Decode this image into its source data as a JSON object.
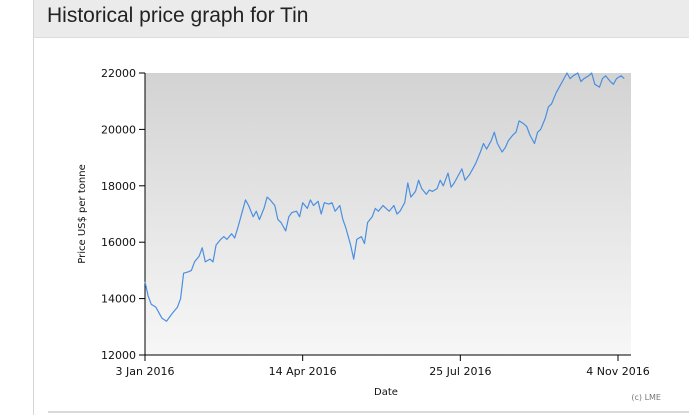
{
  "page": {
    "title": "Historical price graph for Tin"
  },
  "chart_data": {
    "type": "line",
    "title": "",
    "xlabel": "Date",
    "ylabel": "Price US$ per tonne",
    "credit": "(c) LME",
    "ylim": [
      12000,
      22000
    ],
    "xlim": [
      "2016-01-03",
      "2016-11-08"
    ],
    "yticks": [
      12000,
      14000,
      16000,
      18000,
      20000,
      22000
    ],
    "xticks": [
      {
        "date": "2016-01-03",
        "label": "3 Jan 2016"
      },
      {
        "date": "2016-04-14",
        "label": "14 Apr 2016"
      },
      {
        "date": "2016-07-25",
        "label": "25 Jul 2016"
      },
      {
        "date": "2016-11-04",
        "label": "4 Nov 2016"
      }
    ],
    "grid": false,
    "line_color": "#4a8fe0",
    "series": [
      {
        "x": [
          "2016-01-03",
          "2016-01-05",
          "2016-01-07",
          "2016-01-10",
          "2016-01-12",
          "2016-01-14",
          "2016-01-17",
          "2016-01-19",
          "2016-01-21",
          "2016-01-24",
          "2016-01-26",
          "2016-01-28",
          "2016-01-31",
          "2016-02-02",
          "2016-02-04",
          "2016-02-07",
          "2016-02-09",
          "2016-02-11",
          "2016-02-14",
          "2016-02-16",
          "2016-02-18",
          "2016-02-21",
          "2016-02-23",
          "2016-02-25",
          "2016-02-28",
          "2016-03-01",
          "2016-03-03",
          "2016-03-06",
          "2016-03-08",
          "2016-03-10",
          "2016-03-13",
          "2016-03-15",
          "2016-03-17",
          "2016-03-20",
          "2016-03-22",
          "2016-03-24",
          "2016-03-27",
          "2016-03-29",
          "2016-03-31",
          "2016-04-03",
          "2016-04-05",
          "2016-04-07",
          "2016-04-10",
          "2016-04-12",
          "2016-04-14",
          "2016-04-17",
          "2016-04-19",
          "2016-04-21",
          "2016-04-24",
          "2016-04-26",
          "2016-04-28",
          "2016-05-01",
          "2016-05-03",
          "2016-05-05",
          "2016-05-08",
          "2016-05-10",
          "2016-05-12",
          "2016-05-15",
          "2016-05-17",
          "2016-05-19",
          "2016-05-22",
          "2016-05-24",
          "2016-05-26",
          "2016-05-29",
          "2016-05-31",
          "2016-06-02",
          "2016-06-05",
          "2016-06-07",
          "2016-06-09",
          "2016-06-12",
          "2016-06-14",
          "2016-06-16",
          "2016-06-19",
          "2016-06-21",
          "2016-06-23",
          "2016-06-26",
          "2016-06-28",
          "2016-06-30",
          "2016-07-03",
          "2016-07-05",
          "2016-07-07",
          "2016-07-10",
          "2016-07-12",
          "2016-07-14",
          "2016-07-17",
          "2016-07-19",
          "2016-07-21",
          "2016-07-24",
          "2016-07-26",
          "2016-07-28",
          "2016-07-31",
          "2016-08-02",
          "2016-08-04",
          "2016-08-07",
          "2016-08-09",
          "2016-08-11",
          "2016-08-14",
          "2016-08-16",
          "2016-08-18",
          "2016-08-21",
          "2016-08-23",
          "2016-08-25",
          "2016-08-28",
          "2016-08-30",
          "2016-09-01",
          "2016-09-04",
          "2016-09-06",
          "2016-09-08",
          "2016-09-11",
          "2016-09-13",
          "2016-09-15",
          "2016-09-18",
          "2016-09-20",
          "2016-09-22",
          "2016-09-25",
          "2016-09-27",
          "2016-09-29",
          "2016-10-02",
          "2016-10-04",
          "2016-10-06",
          "2016-10-09",
          "2016-10-11",
          "2016-10-13",
          "2016-10-16",
          "2016-10-18",
          "2016-10-20",
          "2016-10-23",
          "2016-10-25",
          "2016-10-27",
          "2016-10-30",
          "2016-11-01",
          "2016-11-03",
          "2016-11-06",
          "2016-11-08"
        ],
        "y": [
          14600,
          14100,
          13800,
          13700,
          13500,
          13300,
          13200,
          13350,
          13500,
          13700,
          14000,
          14900,
          14950,
          15000,
          15300,
          15500,
          15800,
          15300,
          15400,
          15300,
          15900,
          16100,
          16200,
          16100,
          16300,
          16150,
          16500,
          17100,
          17500,
          17300,
          16900,
          17100,
          16800,
          17200,
          17600,
          17500,
          17300,
          16800,
          16700,
          16400,
          16900,
          17050,
          17100,
          16900,
          17400,
          17200,
          17500,
          17300,
          17450,
          17000,
          17400,
          17350,
          17400,
          17100,
          17300,
          16800,
          16500,
          15900,
          15400,
          16100,
          16200,
          15950,
          16700,
          16900,
          17200,
          17100,
          17300,
          17200,
          17100,
          17300,
          17000,
          17100,
          17400,
          18100,
          17600,
          17800,
          18200,
          17900,
          17700,
          17850,
          17800,
          17900,
          18200,
          18000,
          18450,
          17950,
          18100,
          18400,
          18600,
          18200,
          18400,
          18600,
          18800,
          19200,
          19500,
          19300,
          19600,
          19900,
          19500,
          19200,
          19350,
          19600,
          19800,
          19900,
          20300,
          20200,
          20100,
          19800,
          19500,
          19900,
          20000,
          20400,
          20800,
          20900,
          21300,
          21500,
          21700,
          22000,
          21800,
          21900,
          22000,
          21700,
          21800,
          21900,
          22000,
          21600,
          21500,
          21800,
          21900,
          21700,
          21600,
          21800,
          21900,
          21800
        ]
      }
    ]
  }
}
